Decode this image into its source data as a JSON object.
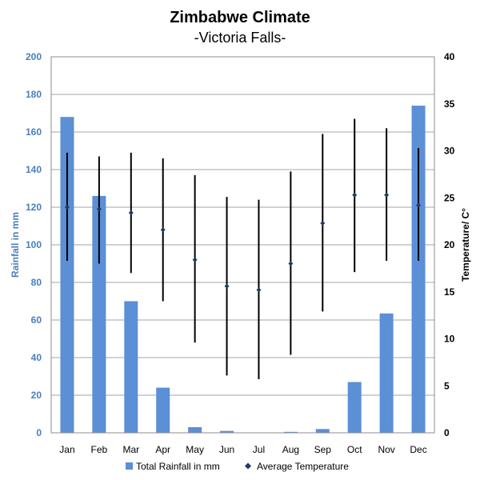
{
  "chart_data": {
    "type": "bar",
    "title": "Zimbabwe Climate",
    "subtitle": "-Victoria Falls-",
    "categories": [
      "Jan",
      "Feb",
      "Mar",
      "Apr",
      "May",
      "Jun",
      "Jul",
      "Aug",
      "Sep",
      "Oct",
      "Nov",
      "Dec"
    ],
    "ylabel_left": "Rainfall in mm",
    "ylabel_right": "Temperature/ C°",
    "ylim_left": [
      0,
      200
    ],
    "yticks_left": [
      "0",
      "20",
      "40",
      "60",
      "80",
      "100",
      "120",
      "140",
      "160",
      "180",
      "200"
    ],
    "ylim_right": [
      0,
      40
    ],
    "yticks_right": [
      "0",
      "5",
      "10",
      "15",
      "20",
      "25",
      "30",
      "35",
      "40"
    ],
    "grid": true,
    "legend_position": "bottom",
    "series": [
      {
        "name": "Total Rainfall in mm",
        "type": "bar",
        "axis": "left",
        "color": "#5b8fd6",
        "values": [
          168,
          126,
          70,
          24,
          3,
          1,
          0,
          0.5,
          2,
          27,
          63.5,
          174
        ]
      },
      {
        "name": "Average Temperature",
        "type": "scatter",
        "axis": "right",
        "color": "#1f3864",
        "values": [
          24,
          23.8,
          23.4,
          21.6,
          18.4,
          15.6,
          15.2,
          18,
          22.3,
          25.3,
          25.3,
          24.2
        ],
        "min": [
          18.3,
          18,
          17,
          14,
          9.6,
          6.1,
          5.7,
          8.3,
          12.9,
          17.1,
          18.3,
          18.3
        ],
        "max": [
          29.8,
          29.4,
          29.8,
          29.2,
          27.4,
          25.1,
          24.8,
          27.8,
          31.8,
          33.4,
          32.4,
          30.3
        ]
      }
    ]
  }
}
